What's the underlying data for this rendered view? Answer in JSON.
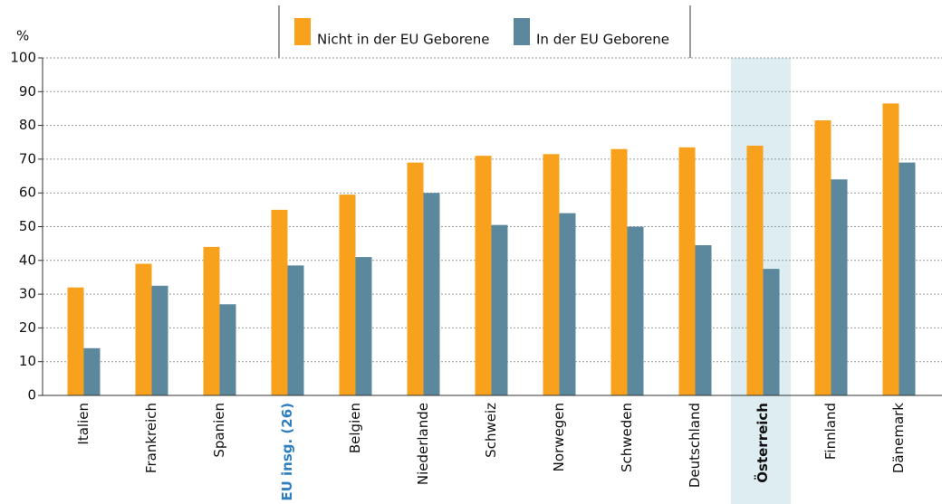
{
  "chart_data": {
    "type": "bar",
    "y_label": "%",
    "categories": [
      "Italien",
      "Frankreich",
      "Spanien",
      "EU insg. (26)",
      "Belgien",
      "Niederlande",
      "Schweiz",
      "Norwegen",
      "Schweden",
      "Deutschland",
      "Österreich",
      "Finnland",
      "Dänemark"
    ],
    "series": [
      {
        "name": "Nicht in der EU Geborene",
        "color": "#f7a11d",
        "values": [
          32,
          39,
          44,
          55,
          59.5,
          69,
          71,
          71.5,
          73,
          73.5,
          74,
          81.5,
          86.5
        ]
      },
      {
        "name": "In der EU Geborene",
        "color": "#5b889d",
        "values": [
          14,
          32.5,
          27,
          38.5,
          41,
          60,
          50.5,
          54,
          50,
          44.5,
          37.5,
          64,
          69
        ]
      }
    ],
    "ylim": [
      0,
      100
    ],
    "yticks": [
      0,
      10,
      20,
      30,
      40,
      50,
      60,
      70,
      80,
      90,
      100
    ],
    "grid": true
  }
}
